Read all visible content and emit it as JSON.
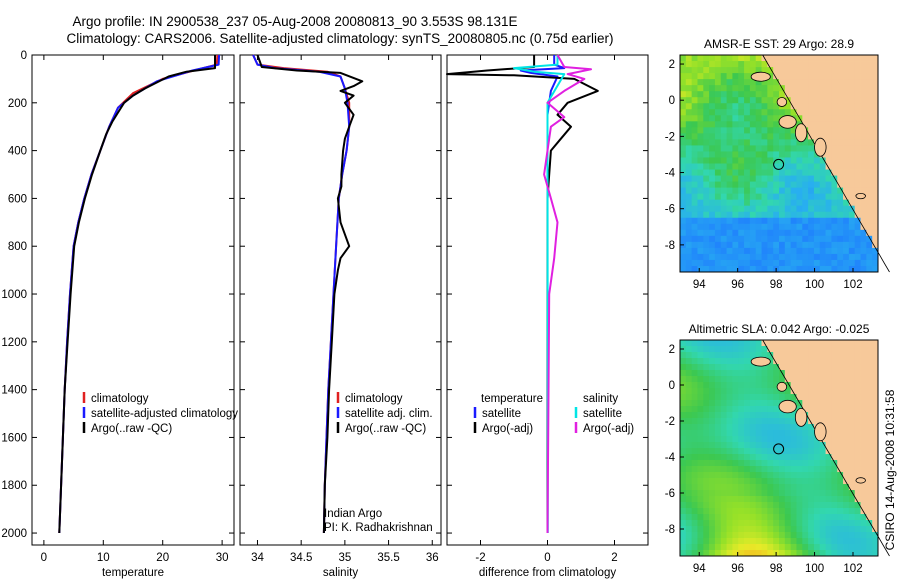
{
  "title_line1": "Argo profile: IN 2900538_237 05-Aug-2008 20080813_90 3.553S 98.131E",
  "title_line2": "Climatology: CARS2006. Satellite-adjusted climatology: synTS_20080805.nc (0.75d earlier)",
  "side_stamp": "CSIRO 14-Aug-2008 10:31:58",
  "colors": {
    "climatology": "#e02020",
    "satellite": "#1a1aff",
    "argo": "#000000",
    "sal_satellite": "#00e5e5",
    "sal_argo": "#e020e0",
    "land": "#f7c99a"
  },
  "chart_data": [
    {
      "id": "temperature",
      "type": "line",
      "xlabel": "temperature",
      "xlim": [
        -2,
        32
      ],
      "ylim": [
        2050,
        0
      ],
      "xticks": [
        0,
        10,
        20,
        30
      ],
      "yticks": [
        0,
        200,
        400,
        600,
        800,
        1000,
        1200,
        1400,
        1600,
        1800,
        2000
      ],
      "legend": [
        "climatology",
        "satellite-adjusted climatology",
        "Argo(..raw -QC)"
      ],
      "series": [
        {
          "name": "climatology",
          "color": "#e02020",
          "points": [
            [
              29.2,
              0
            ],
            [
              29.1,
              40
            ],
            [
              26,
              60
            ],
            [
              20,
              100
            ],
            [
              15,
              160
            ],
            [
              12.5,
              220
            ],
            [
              11,
              300
            ],
            [
              9.5,
              400
            ],
            [
              8,
              500
            ],
            [
              6.8,
              600
            ],
            [
              5.8,
              700
            ],
            [
              5,
              800
            ],
            [
              4.4,
              1000
            ],
            [
              3.9,
              1200
            ],
            [
              3.5,
              1400
            ],
            [
              3.2,
              1600
            ],
            [
              2.9,
              1800
            ],
            [
              2.6,
              2000
            ]
          ]
        },
        {
          "name": "satellite-adjusted climatology",
          "color": "#1a1aff",
          "points": [
            [
              29.5,
              0
            ],
            [
              29.4,
              40
            ],
            [
              25,
              65
            ],
            [
              19,
              110
            ],
            [
              15,
              170
            ],
            [
              12.5,
              220
            ],
            [
              11,
              300
            ],
            [
              9.5,
              400
            ],
            [
              8,
              500
            ],
            [
              6.8,
              600
            ],
            [
              5.8,
              700
            ],
            [
              5,
              800
            ],
            [
              4.4,
              1000
            ],
            [
              3.9,
              1200
            ],
            [
              3.5,
              1400
            ],
            [
              3.2,
              1600
            ],
            [
              2.9,
              1800
            ],
            [
              2.6,
              2000
            ]
          ]
        },
        {
          "name": "Argo(..raw -QC)",
          "color": "#000000",
          "points": [
            [
              28.8,
              0
            ],
            [
              28.8,
              55
            ],
            [
              24,
              70
            ],
            [
              21,
              90
            ],
            [
              17,
              140
            ],
            [
              15,
              170
            ],
            [
              13.5,
              200
            ],
            [
              12.5,
              240
            ],
            [
              11.5,
              280
            ],
            [
              10.5,
              330
            ],
            [
              9.5,
              400
            ],
            [
              8.1,
              500
            ],
            [
              6.9,
              600
            ],
            [
              5.9,
              700
            ],
            [
              5.1,
              800
            ],
            [
              4.5,
              1000
            ],
            [
              4,
              1200
            ],
            [
              3.5,
              1400
            ],
            [
              3.2,
              1600
            ],
            [
              2.9,
              1800
            ],
            [
              2.6,
              2000
            ]
          ]
        }
      ]
    },
    {
      "id": "salinity",
      "type": "line",
      "xlabel": "salinity",
      "xlim": [
        33.8,
        36.1
      ],
      "ylim": [
        2050,
        0
      ],
      "xticks": [
        34,
        34.5,
        35,
        35.5,
        36
      ],
      "legend": [
        "climatology",
        "satellite adj. clim.",
        "Argo(..raw -QC)"
      ],
      "annotation": [
        "Indian Argo",
        "PI: K. Radhakrishnan"
      ],
      "series": [
        {
          "name": "climatology",
          "color": "#e02020",
          "points": [
            [
              33.95,
              0
            ],
            [
              34.0,
              40
            ],
            [
              34.3,
              55
            ],
            [
              34.8,
              70
            ],
            [
              34.95,
              90
            ],
            [
              35.0,
              140
            ],
            [
              35.05,
              200
            ],
            [
              35.05,
              300
            ],
            [
              35.02,
              400
            ],
            [
              34.97,
              500
            ],
            [
              34.93,
              600
            ],
            [
              34.9,
              800
            ],
            [
              34.87,
              1000
            ],
            [
              34.84,
              1200
            ],
            [
              34.81,
              1400
            ],
            [
              34.79,
              1600
            ],
            [
              34.77,
              1800
            ],
            [
              34.76,
              2000
            ]
          ]
        },
        {
          "name": "satellite adj. clim.",
          "color": "#1a1aff",
          "points": [
            [
              33.95,
              0
            ],
            [
              34.0,
              40
            ],
            [
              34.2,
              55
            ],
            [
              34.7,
              70
            ],
            [
              34.95,
              90
            ],
            [
              35.0,
              140
            ],
            [
              35.03,
              200
            ],
            [
              35.05,
              300
            ],
            [
              35.02,
              400
            ],
            [
              34.97,
              500
            ],
            [
              34.93,
              600
            ],
            [
              34.9,
              800
            ],
            [
              34.87,
              1000
            ],
            [
              34.84,
              1200
            ],
            [
              34.81,
              1400
            ],
            [
              34.79,
              1600
            ],
            [
              34.77,
              1800
            ],
            [
              34.76,
              2000
            ]
          ]
        },
        {
          "name": "Argo(..raw -QC)",
          "color": "#000000",
          "points": [
            [
              34.0,
              0
            ],
            [
              34.05,
              50
            ],
            [
              34.45,
              65
            ],
            [
              34.95,
              75
            ],
            [
              35.2,
              110
            ],
            [
              35.1,
              130
            ],
            [
              34.95,
              150
            ],
            [
              35.1,
              170
            ],
            [
              35.0,
              200
            ],
            [
              35.1,
              250
            ],
            [
              35.05,
              300
            ],
            [
              35.0,
              350
            ],
            [
              34.98,
              400
            ],
            [
              34.96,
              500
            ],
            [
              34.96,
              550
            ],
            [
              34.92,
              600
            ],
            [
              34.95,
              700
            ],
            [
              35.05,
              800
            ],
            [
              34.95,
              850
            ],
            [
              34.92,
              900
            ],
            [
              34.88,
              1000
            ],
            [
              34.85,
              1200
            ],
            [
              34.82,
              1400
            ],
            [
              34.8,
              1600
            ],
            [
              34.77,
              1800
            ],
            [
              34.76,
              2000
            ]
          ]
        }
      ]
    },
    {
      "id": "difference",
      "type": "line",
      "xlabel": "difference from climatology",
      "xlim": [
        -3,
        3
      ],
      "ylim": [
        2050,
        0
      ],
      "xticks": [
        -2,
        0,
        2
      ],
      "legend_left_title": "temperature",
      "legend_right_title": "salinity",
      "legend_left": [
        "satellite",
        "Argo(-adj)"
      ],
      "legend_right": [
        "satellite",
        "Argo(-adj)"
      ],
      "series": [
        {
          "name": "temperature satellite",
          "color": "#1a1aff",
          "points": [
            [
              0.2,
              0
            ],
            [
              0.2,
              40
            ],
            [
              0.5,
              55
            ],
            [
              -0.8,
              65
            ],
            [
              -0.5,
              75
            ],
            [
              0.3,
              90
            ],
            [
              0.1,
              150
            ],
            [
              0,
              250
            ],
            [
              0,
              2000
            ]
          ]
        },
        {
          "name": "temperature Argo(-adj)",
          "color": "#000000",
          "points": [
            [
              -0.4,
              0
            ],
            [
              -0.4,
              50
            ],
            [
              -1.8,
              65
            ],
            [
              -3,
              80
            ],
            [
              -1,
              85
            ],
            [
              0.8,
              100
            ],
            [
              1.5,
              150
            ],
            [
              0.6,
              200
            ],
            [
              0.3,
              250
            ],
            [
              0.7,
              300
            ],
            [
              0.4,
              350
            ],
            [
              0.1,
              400
            ],
            [
              0,
              600
            ],
            [
              0,
              2000
            ]
          ]
        },
        {
          "name": "salinity satellite",
          "color": "#00e5e5",
          "points": [
            [
              0.3,
              0
            ],
            [
              0.3,
              40
            ],
            [
              -1,
              55
            ],
            [
              -0.4,
              70
            ],
            [
              0.5,
              80
            ],
            [
              0,
              200
            ],
            [
              0,
              300
            ],
            [
              0.01,
              2000
            ]
          ]
        },
        {
          "name": "salinity Argo(-adj)",
          "color": "#e020e0",
          "points": [
            [
              0.3,
              0
            ],
            [
              0.5,
              50
            ],
            [
              1.3,
              60
            ],
            [
              0.6,
              80
            ],
            [
              1.1,
              100
            ],
            [
              0.5,
              150
            ],
            [
              0,
              200
            ],
            [
              0.5,
              260
            ],
            [
              0.1,
              300
            ],
            [
              0,
              400
            ],
            [
              -0.1,
              500
            ],
            [
              0.1,
              600
            ],
            [
              0.3,
              700
            ],
            [
              0.2,
              850
            ],
            [
              0.05,
              1000
            ],
            [
              0,
              2000
            ]
          ]
        }
      ]
    },
    {
      "id": "sst-map",
      "type": "heatmap",
      "title": "AMSR-E SST: 29 Argo: 28.9",
      "xlim": [
        93,
        103.3
      ],
      "ylim": [
        -9.5,
        2.5
      ],
      "xticks": [
        94,
        96,
        98,
        100,
        102
      ],
      "yticks": [
        -8,
        -6,
        -4,
        -2,
        0,
        2
      ],
      "marker": [
        98.13,
        -3.55
      ]
    },
    {
      "id": "sla-map",
      "type": "heatmap",
      "title": "Altimetric SLA: 0.042 Argo: -0.025",
      "xlim": [
        93,
        103.3
      ],
      "ylim": [
        -9.5,
        2.5
      ],
      "xticks": [
        94,
        96,
        98,
        100,
        102
      ],
      "yticks": [
        -8,
        -6,
        -4,
        -2,
        0,
        2
      ],
      "marker": [
        98.13,
        -3.55
      ]
    }
  ]
}
